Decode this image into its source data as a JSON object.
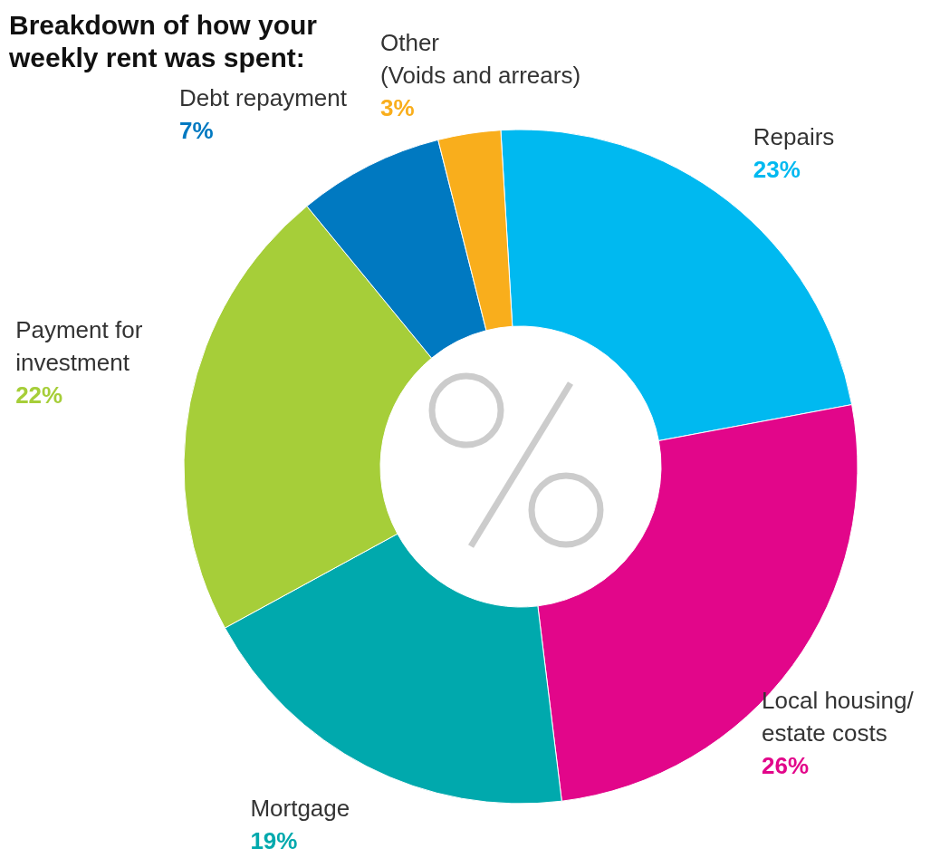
{
  "chart_data": {
    "type": "donut",
    "title": "Breakdown of how your\nweekly rent was spent:",
    "categories": [
      "Repairs",
      "Local housing/\nestate costs",
      "Mortgage",
      "Payment for\ninvestment",
      "Debt repayment",
      "Other\n(Voids and arrears)"
    ],
    "values": [
      23,
      26,
      19,
      22,
      7,
      3
    ],
    "colors": [
      "#00b9f0",
      "#e2068a",
      "#00a9ad",
      "#a6ce39",
      "#0079c1",
      "#f9ae1c"
    ],
    "value_labels": [
      "23%",
      "26%",
      "19%",
      "22%",
      "7%",
      "3%"
    ]
  }
}
